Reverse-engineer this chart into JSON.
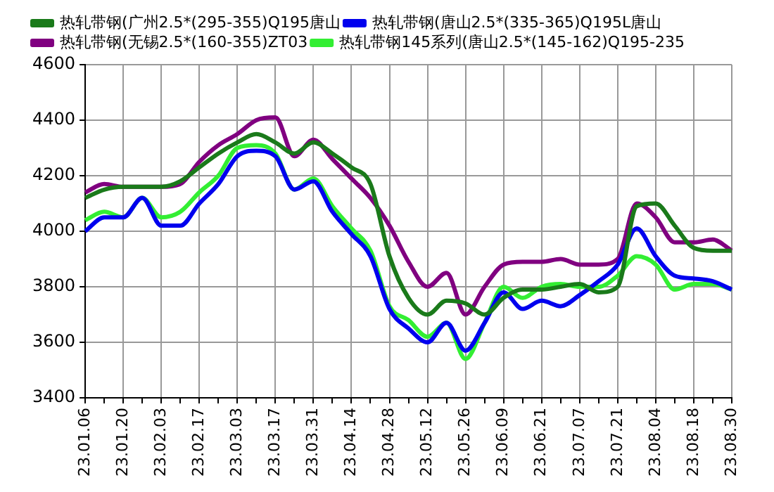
{
  "chart_data": {
    "type": "line",
    "categories": [
      "23.01.06",
      null,
      "23.01.20",
      null,
      "23.02.03",
      null,
      "23.02.17",
      null,
      "23.03.03",
      null,
      "23.03.17",
      null,
      "23.03.31",
      null,
      "23.04.14",
      null,
      "23.04.28",
      null,
      "23.05.12",
      null,
      "23.05.26",
      null,
      "23.06.09",
      null,
      "23.06.21",
      null,
      "23.07.07",
      null,
      "23.07.21",
      null,
      "23.08.04",
      null,
      "23.08.18",
      null,
      "23.08.30"
    ],
    "series": [
      {
        "name": "热轧带钢(广州2.5*(295-355)Q195唐山",
        "color": "#1a7a1a",
        "values": [
          4120,
          4150,
          4160,
          4160,
          4160,
          4180,
          4230,
          4280,
          4320,
          4350,
          4320,
          4280,
          4320,
          4280,
          4230,
          4170,
          3910,
          3760,
          3700,
          3750,
          3740,
          3700,
          3760,
          3790,
          3790,
          3800,
          3810,
          3780,
          3800,
          4090,
          4100,
          4020,
          3940,
          3930,
          3930
        ]
      },
      {
        "name": "热轧带钢(唐山2.5*(335-365)Q195L唐山",
        "color": "#0000ee",
        "values": [
          4000,
          4050,
          4050,
          4120,
          4020,
          4020,
          4100,
          4170,
          4270,
          4290,
          4270,
          4150,
          4180,
          4070,
          3990,
          3910,
          3720,
          3650,
          3600,
          3670,
          3570,
          3670,
          3780,
          3720,
          3750,
          3730,
          3770,
          3820,
          3880,
          4010,
          3910,
          3840,
          3830,
          3820,
          3790
        ]
      },
      {
        "name": "热轧带钢(无锡2.5*(160-355)ZT03",
        "color": "#800080",
        "values": [
          4140,
          4170,
          4160,
          4160,
          4160,
          4170,
          4250,
          4310,
          4350,
          4400,
          4410,
          4270,
          4330,
          4260,
          4190,
          4120,
          4020,
          3890,
          3800,
          3850,
          3700,
          3800,
          3880,
          3890,
          3890,
          3900,
          3880,
          3880,
          3900,
          4100,
          4050,
          3960,
          3960,
          3970,
          3930
        ]
      },
      {
        "name": "热轧带钢145系列(唐山2.5*(145-162)Q195-235",
        "color": "#33ee33",
        "values": [
          4040,
          4070,
          4050,
          4120,
          4050,
          4070,
          4140,
          4200,
          4300,
          4310,
          4280,
          4150,
          4190,
          4090,
          4010,
          3930,
          3730,
          3680,
          3620,
          3670,
          3540,
          3670,
          3800,
          3760,
          3800,
          3810,
          3800,
          3800,
          3840,
          3910,
          3880,
          3790,
          3810,
          3810,
          3790
        ]
      }
    ],
    "ylim": [
      3400,
      4600
    ],
    "yticks": [
      3400,
      3600,
      3800,
      4000,
      4200,
      4400,
      4600
    ],
    "grid": true,
    "legend": "top",
    "marker": "none",
    "line_style": "solid"
  }
}
